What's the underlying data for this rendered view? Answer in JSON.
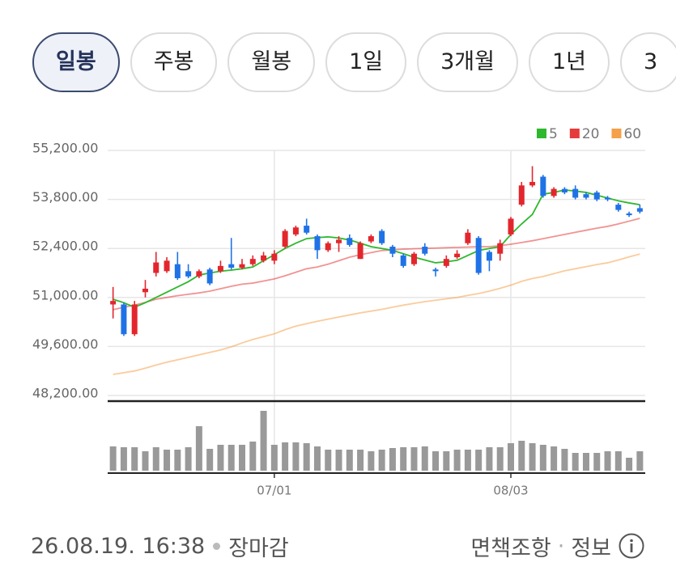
{
  "tabs": [
    {
      "label": "일봉",
      "selected": true
    },
    {
      "label": "주봉",
      "selected": false
    },
    {
      "label": "월봉",
      "selected": false
    },
    {
      "label": "1일",
      "selected": false
    },
    {
      "label": "3개월",
      "selected": false
    },
    {
      "label": "1년",
      "selected": false
    },
    {
      "label": "3",
      "selected": false
    }
  ],
  "chart_data": {
    "type": "candlestick",
    "categories": [
      null,
      null,
      null,
      null,
      null,
      null,
      null,
      null,
      null,
      null,
      null,
      null,
      null,
      null,
      null,
      "07/01",
      null,
      null,
      null,
      null,
      null,
      null,
      null,
      null,
      null,
      null,
      null,
      null,
      null,
      null,
      null,
      null,
      null,
      null,
      null,
      null,
      null,
      "08/03",
      null,
      null,
      null,
      null,
      null,
      null,
      null,
      null,
      null,
      null,
      null,
      null
    ],
    "open": [
      50800,
      50800,
      49950,
      51150,
      51700,
      51750,
      51950,
      51750,
      51600,
      51800,
      51750,
      51950,
      51850,
      51950,
      52050,
      52050,
      52450,
      52800,
      53050,
      52750,
      52350,
      52550,
      52700,
      52100,
      52600,
      52900,
      52450,
      52200,
      51950,
      52450,
      51800,
      51900,
      52150,
      52550,
      52700,
      52300,
      52250,
      52800,
      53650,
      54200,
      54450,
      53900,
      54100,
      54100,
      53950,
      54000,
      53850,
      53650,
      53400,
      53550
    ],
    "high": [
      51300,
      50850,
      50900,
      51500,
      52300,
      52150,
      52300,
      51950,
      51800,
      51850,
      52050,
      52700,
      52100,
      52200,
      52300,
      52350,
      52950,
      53050,
      53250,
      52800,
      52600,
      52750,
      52800,
      52600,
      52800,
      52950,
      52500,
      52250,
      52300,
      52550,
      51850,
      52200,
      52350,
      52950,
      52750,
      52350,
      52650,
      53300,
      54300,
      54750,
      54500,
      54150,
      54150,
      54200,
      54000,
      54050,
      53900,
      53700,
      53450,
      53650
    ],
    "low": [
      50400,
      49900,
      49900,
      51000,
      51600,
      51700,
      51500,
      51550,
      51550,
      51350,
      51700,
      51800,
      51800,
      51900,
      52000,
      51950,
      52400,
      52750,
      52800,
      52100,
      52300,
      52300,
      52450,
      52100,
      52550,
      52500,
      52150,
      51850,
      51900,
      52200,
      51600,
      51850,
      52100,
      52500,
      51650,
      51750,
      52050,
      52750,
      53600,
      54150,
      53850,
      53850,
      53950,
      53800,
      53800,
      53750,
      53750,
      53450,
      53300,
      53400
    ],
    "close": [
      50900,
      49950,
      50800,
      51250,
      52000,
      52050,
      51550,
      51600,
      51750,
      51400,
      51900,
      51850,
      51950,
      52100,
      52200,
      52250,
      52900,
      53000,
      52850,
      52350,
      52550,
      52650,
      52500,
      52550,
      52750,
      52550,
      52250,
      51900,
      52250,
      52250,
      51750,
      52100,
      52250,
      52850,
      51700,
      52050,
      52550,
      53250,
      54200,
      54300,
      53900,
      54100,
      54000,
      53850,
      53850,
      53800,
      53800,
      53500,
      53350,
      53450
    ],
    "up_color": "#e3262d",
    "down_color": "#1f72e6",
    "series": [
      {
        "name": "5",
        "color": "#2db82d",
        "values": [
          50950,
          50850,
          50720,
          50850,
          51000,
          51150,
          51300,
          51450,
          51640,
          51700,
          51750,
          51780,
          51820,
          51870,
          52050,
          52220,
          52400,
          52550,
          52680,
          52710,
          52730,
          52700,
          52640,
          52550,
          52450,
          52400,
          52340,
          52250,
          52150,
          52070,
          51990,
          52020,
          52060,
          52200,
          52340,
          52400,
          52450,
          52800,
          53100,
          53370,
          53950,
          54000,
          54070,
          54040,
          54000,
          53920,
          53840,
          53760,
          53700,
          53650
        ]
      },
      {
        "name": "20",
        "color": "#e63b3b",
        "values": [
          50650,
          50720,
          50780,
          50860,
          50950,
          51000,
          51050,
          51090,
          51130,
          51180,
          51250,
          51320,
          51380,
          51410,
          51470,
          51530,
          51620,
          51720,
          51820,
          51870,
          51950,
          52050,
          52150,
          52220,
          52280,
          52340,
          52360,
          52380,
          52390,
          52400,
          52410,
          52420,
          52430,
          52440,
          52450,
          52450,
          52480,
          52520,
          52570,
          52620,
          52680,
          52740,
          52800,
          52860,
          52920,
          52980,
          53030,
          53100,
          53180,
          53260
        ]
      },
      {
        "name": "60",
        "color": "#f5a04a",
        "values": [
          48800,
          48850,
          48900,
          48980,
          49070,
          49150,
          49220,
          49290,
          49360,
          49430,
          49500,
          49590,
          49700,
          49800,
          49880,
          49960,
          50080,
          50180,
          50250,
          50320,
          50380,
          50440,
          50500,
          50560,
          50610,
          50660,
          50720,
          50780,
          50830,
          50880,
          50920,
          50960,
          51000,
          51060,
          51110,
          51180,
          51260,
          51350,
          51460,
          51540,
          51600,
          51680,
          51760,
          51820,
          51880,
          51940,
          51990,
          52070,
          52160,
          52240
        ]
      }
    ],
    "ylim": [
      48200,
      55200
    ],
    "yticks": [
      {
        "value": 48200,
        "label": "48,200.00"
      },
      {
        "value": 49600,
        "label": "49,600.00"
      },
      {
        "value": 51000,
        "label": "51,000.00"
      },
      {
        "value": 52400,
        "label": "52,400.00"
      },
      {
        "value": 53800,
        "label": "53,800.00"
      },
      {
        "value": 55200,
        "label": "55,200.00"
      }
    ],
    "grid": true,
    "volume": {
      "color": "#999999",
      "ylim": [
        0,
        82
      ],
      "values": [
        30,
        29,
        29,
        24,
        29,
        26,
        26,
        29,
        55,
        27,
        32,
        32,
        32,
        36,
        74,
        32,
        35,
        35,
        34,
        30,
        26,
        26,
        26,
        26,
        24,
        26,
        28,
        29,
        29,
        30,
        24,
        24,
        26,
        26,
        26,
        29,
        29,
        34,
        37,
        34,
        32,
        30,
        27,
        22,
        22,
        22,
        24,
        24,
        16,
        24
      ]
    }
  },
  "footer": {
    "timestamp": "26.08.19. 16:38",
    "status": "장마감",
    "disclaimer": "면책조항",
    "info": "정보"
  }
}
